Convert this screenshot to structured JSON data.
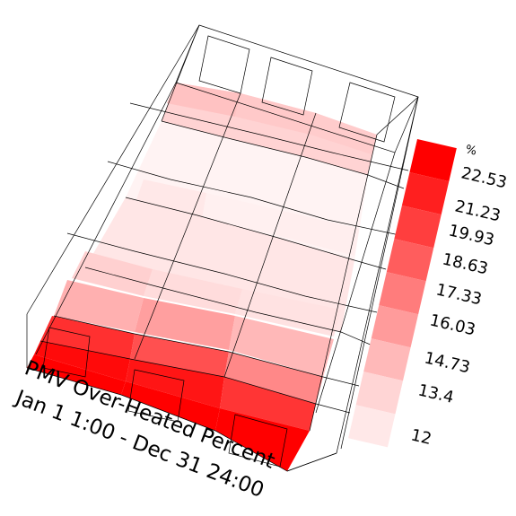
{
  "title_line1": "PMV Over-Heated Percent",
  "title_line2": "Jan 1 1:00 - Dec 31 24:00",
  "legend": {
    "unit": "%",
    "ticks": [
      "22.53",
      "21.23",
      "19.93",
      "18.63",
      "17.33",
      "16.03",
      "14.73",
      "13.4",
      "12"
    ]
  },
  "colors": {
    "max": "#ff0000",
    "min": "#ffffff",
    "wire": "#000000"
  }
}
